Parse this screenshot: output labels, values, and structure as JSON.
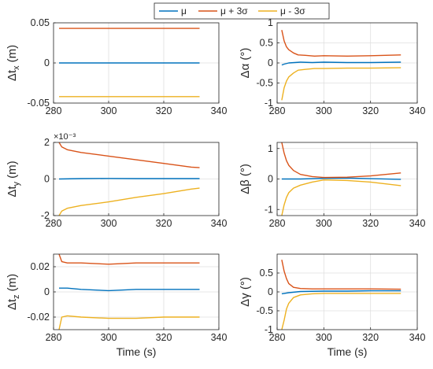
{
  "legend": [
    {
      "label": "μ",
      "color": "#0072bd"
    },
    {
      "label": "μ + 3σ",
      "color": "#d95319"
    },
    {
      "label": "μ - 3σ",
      "color": "#edb120"
    }
  ],
  "chart_data": [
    {
      "type": "line",
      "ylabel": "Δt_x (m)",
      "xlabel": "",
      "xlim": [
        280,
        340
      ],
      "ylim": [
        -0.05,
        0.05
      ],
      "xticks": [
        "280",
        "300",
        "320",
        "340"
      ],
      "yticks": [
        "-0.05",
        "0",
        "0.05"
      ],
      "ytick_values": [
        -0.05,
        0,
        0.05
      ],
      "grid": true,
      "exponent": "",
      "series": [
        {
          "name": "μ",
          "color": "#0072bd",
          "x": [
            282,
            333
          ],
          "y": [
            0,
            0
          ]
        },
        {
          "name": "μ + 3σ",
          "color": "#d95319",
          "x": [
            282,
            333
          ],
          "y": [
            0.043,
            0.043
          ]
        },
        {
          "name": "μ - 3σ",
          "color": "#edb120",
          "x": [
            282,
            333
          ],
          "y": [
            -0.042,
            -0.042
          ]
        }
      ]
    },
    {
      "type": "line",
      "ylabel": "Δα (°)",
      "xlabel": "",
      "xlim": [
        280,
        340
      ],
      "ylim": [
        -1,
        1
      ],
      "xticks": [
        "280",
        "300",
        "320",
        "340"
      ],
      "yticks": [
        "-1",
        "-0.5",
        "0",
        "0.5",
        "1"
      ],
      "ytick_values": [
        -1,
        -0.5,
        0,
        0.5,
        1
      ],
      "grid": true,
      "exponent": "",
      "series": [
        {
          "name": "μ",
          "color": "#0072bd",
          "x": [
            282,
            283,
            285,
            290,
            295,
            300,
            310,
            320,
            333
          ],
          "y": [
            -0.05,
            -0.03,
            0.0,
            0.02,
            0.01,
            0.02,
            0.01,
            0.01,
            0.02
          ]
        },
        {
          "name": "μ + 3σ",
          "color": "#d95319",
          "x": [
            282,
            283,
            284,
            285,
            287,
            289,
            292,
            296,
            300,
            310,
            320,
            333
          ],
          "y": [
            0.82,
            0.55,
            0.4,
            0.33,
            0.25,
            0.2,
            0.19,
            0.17,
            0.18,
            0.17,
            0.18,
            0.2
          ]
        },
        {
          "name": "μ - 3σ",
          "color": "#edb120",
          "x": [
            282,
            283,
            284,
            285,
            287,
            289,
            292,
            296,
            300,
            310,
            320,
            333
          ],
          "y": [
            -0.93,
            -0.62,
            -0.45,
            -0.35,
            -0.25,
            -0.18,
            -0.16,
            -0.14,
            -0.14,
            -0.13,
            -0.13,
            -0.12
          ]
        }
      ]
    },
    {
      "type": "line",
      "ylabel": "Δt_y (m)",
      "xlabel": "",
      "xlim": [
        280,
        340
      ],
      "ylim": [
        -2,
        2
      ],
      "xticks": [
        "280",
        "300",
        "320",
        "340"
      ],
      "yticks": [
        "-2",
        "0",
        "2"
      ],
      "ytick_values": [
        -2,
        0,
        2
      ],
      "grid": true,
      "exponent": "×10⁻³",
      "series": [
        {
          "name": "μ",
          "color": "#0072bd",
          "x": [
            282,
            290,
            300,
            310,
            320,
            333
          ],
          "y": [
            0.0,
            0.02,
            0.03,
            0.02,
            0.02,
            0.02
          ]
        },
        {
          "name": "μ + 3σ",
          "color": "#d95319",
          "x": [
            282,
            283,
            285,
            290,
            300,
            310,
            320,
            330,
            333
          ],
          "y": [
            2.0,
            1.75,
            1.6,
            1.45,
            1.25,
            1.05,
            0.85,
            0.65,
            0.62
          ]
        },
        {
          "name": "μ - 3σ",
          "color": "#edb120",
          "x": [
            282,
            283,
            285,
            290,
            300,
            310,
            320,
            330,
            333
          ],
          "y": [
            -2.0,
            -1.75,
            -1.6,
            -1.45,
            -1.25,
            -1.0,
            -0.8,
            -0.55,
            -0.5
          ]
        }
      ]
    },
    {
      "type": "line",
      "ylabel": "Δβ (°)",
      "xlabel": "",
      "xlim": [
        280,
        340
      ],
      "ylim": [
        -1.2,
        1.2
      ],
      "xticks": [
        "280",
        "300",
        "320",
        "340"
      ],
      "yticks": [
        "-1",
        "0",
        "1"
      ],
      "ytick_values": [
        -1,
        0,
        1
      ],
      "grid": true,
      "exponent": "",
      "series": [
        {
          "name": "μ",
          "color": "#0072bd",
          "x": [
            282,
            290,
            300,
            310,
            320,
            333
          ],
          "y": [
            0.0,
            0.0,
            0.02,
            0.03,
            0.01,
            -0.01
          ]
        },
        {
          "name": "μ + 3σ",
          "color": "#d95319",
          "x": [
            282,
            283,
            284,
            285,
            287,
            290,
            295,
            300,
            310,
            320,
            333
          ],
          "y": [
            1.2,
            0.85,
            0.6,
            0.45,
            0.28,
            0.15,
            0.08,
            0.05,
            0.06,
            0.1,
            0.2
          ]
        },
        {
          "name": "μ - 3σ",
          "color": "#edb120",
          "x": [
            282,
            283,
            284,
            285,
            287,
            290,
            295,
            300,
            310,
            320,
            333
          ],
          "y": [
            -1.2,
            -0.85,
            -0.6,
            -0.45,
            -0.3,
            -0.2,
            -0.1,
            -0.03,
            -0.05,
            -0.1,
            -0.22
          ]
        }
      ]
    },
    {
      "type": "line",
      "ylabel": "Δt_z (m)",
      "xlabel": "Time (s)",
      "xlim": [
        280,
        340
      ],
      "ylim": [
        -0.03,
        0.03
      ],
      "xticks": [
        "280",
        "300",
        "320",
        "340"
      ],
      "yticks": [
        "-0.02",
        "0",
        "0.02"
      ],
      "ytick_values": [
        -0.02,
        0,
        0.02
      ],
      "grid": true,
      "exponent": "",
      "series": [
        {
          "name": "μ",
          "color": "#0072bd",
          "x": [
            282,
            285,
            290,
            300,
            310,
            320,
            333
          ],
          "y": [
            0.003,
            0.003,
            0.002,
            0.001,
            0.002,
            0.002,
            0.002
          ]
        },
        {
          "name": "μ + 3σ",
          "color": "#d95319",
          "x": [
            282,
            283,
            285,
            290,
            300,
            310,
            320,
            333
          ],
          "y": [
            0.03,
            0.024,
            0.023,
            0.023,
            0.022,
            0.023,
            0.023,
            0.023
          ]
        },
        {
          "name": "μ - 3σ",
          "color": "#edb120",
          "x": [
            282,
            283,
            285,
            290,
            300,
            310,
            320,
            333
          ],
          "y": [
            -0.03,
            -0.02,
            -0.019,
            -0.02,
            -0.021,
            -0.021,
            -0.02,
            -0.02
          ]
        }
      ]
    },
    {
      "type": "line",
      "ylabel": "Δγ (°)",
      "xlabel": "Time (s)",
      "xlim": [
        280,
        340
      ],
      "ylim": [
        -1,
        1
      ],
      "xticks": [
        "280",
        "300",
        "320",
        "340"
      ],
      "yticks": [
        "-1",
        "-0.5",
        "0",
        "0.5"
      ],
      "ytick_values": [
        -1,
        -0.5,
        0,
        0.5
      ],
      "grid": true,
      "exponent": "",
      "series": [
        {
          "name": "μ",
          "color": "#0072bd",
          "x": [
            282,
            285,
            290,
            300,
            310,
            320,
            333
          ],
          "y": [
            -0.05,
            -0.02,
            0.01,
            0.02,
            0.02,
            0.03,
            0.03
          ]
        },
        {
          "name": "μ + 3σ",
          "color": "#d95319",
          "x": [
            282,
            283,
            284,
            285,
            287,
            290,
            295,
            300,
            310,
            320,
            333
          ],
          "y": [
            0.85,
            0.55,
            0.35,
            0.22,
            0.12,
            0.09,
            0.08,
            0.08,
            0.08,
            0.08,
            0.07
          ]
        },
        {
          "name": "μ - 3σ",
          "color": "#edb120",
          "x": [
            282,
            283,
            284,
            285,
            287,
            290,
            295,
            300,
            310,
            320,
            333
          ],
          "y": [
            -1.0,
            -0.75,
            -0.45,
            -0.3,
            -0.15,
            -0.08,
            -0.05,
            -0.04,
            -0.04,
            -0.04,
            -0.04
          ]
        }
      ]
    }
  ]
}
